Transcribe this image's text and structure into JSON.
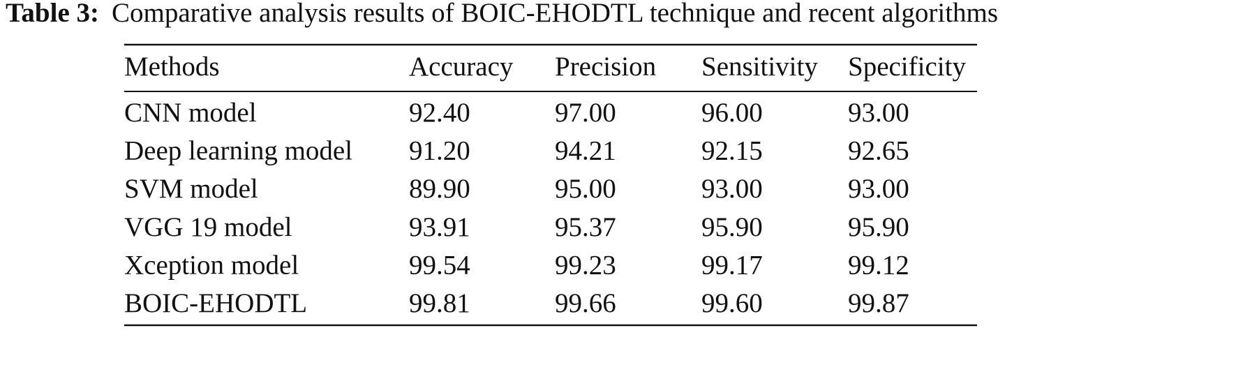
{
  "caption": {
    "label": "Table 3:",
    "text": "Comparative analysis results of BOIC-EHODTL technique and recent algorithms"
  },
  "table": {
    "header": [
      "Methods",
      "Accuracy",
      "Precision",
      "Sensitivity",
      "Specificity"
    ],
    "rows": [
      [
        "CNN model",
        "92.40",
        "97.00",
        "96.00",
        "93.00"
      ],
      [
        "Deep learning model",
        "91.20",
        "94.21",
        "92.15",
        "92.65"
      ],
      [
        "SVM model",
        "89.90",
        "95.00",
        "93.00",
        "93.00"
      ],
      [
        "VGG 19 model",
        "93.91",
        "95.37",
        "95.90",
        "95.90"
      ],
      [
        "Xception model",
        "99.54",
        "99.23",
        "99.17",
        "99.12"
      ],
      [
        "BOIC-EHODTL",
        "99.81",
        "99.66",
        "99.60",
        "99.87"
      ]
    ]
  }
}
